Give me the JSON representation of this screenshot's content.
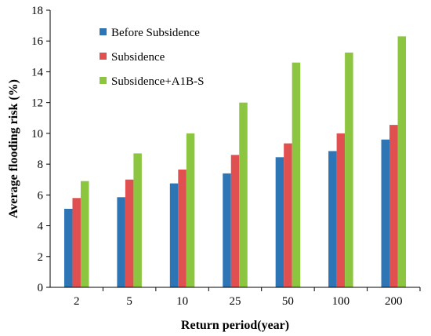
{
  "chart_data": {
    "type": "bar",
    "title": "",
    "xlabel": "Return period(year)",
    "ylabel": "Average flooding risk (%)",
    "ylim": [
      0,
      18
    ],
    "yticks": [
      0,
      2,
      4,
      6,
      8,
      10,
      12,
      14,
      16,
      18
    ],
    "grid": false,
    "legend_position": "top-left",
    "categories": [
      "2",
      "5",
      "10",
      "25",
      "50",
      "100",
      "200"
    ],
    "series": [
      {
        "name": "Before Subsidence",
        "color": "#2E75B6",
        "values": [
          5.1,
          5.85,
          6.75,
          7.4,
          8.45,
          8.85,
          9.6
        ]
      },
      {
        "name": "Subsidence",
        "color": "#E05050",
        "values": [
          5.8,
          7.0,
          7.65,
          8.6,
          9.35,
          10.0,
          10.55
        ]
      },
      {
        "name": "Subsidence+A1B-S",
        "color": "#8CC640",
        "values": [
          6.9,
          8.7,
          10.0,
          12.0,
          14.6,
          15.25,
          16.3
        ]
      }
    ]
  }
}
